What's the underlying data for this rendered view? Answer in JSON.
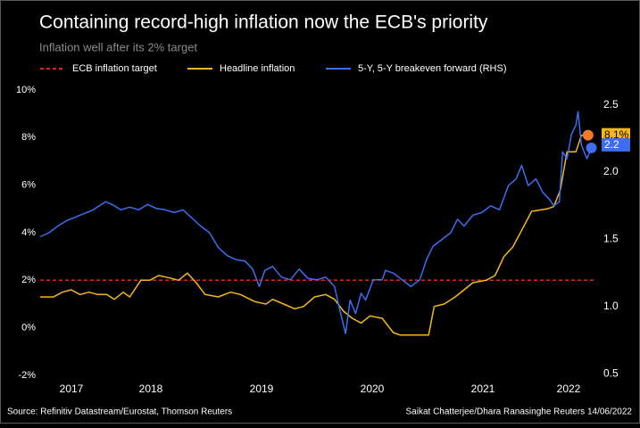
{
  "chart_data": {
    "type": "line",
    "title": "Containing record-high inflation now the ECB's priority",
    "subtitle": "Inflation well after its 2% target",
    "source": "Source: Refinitiv Datastream/Eurostat, Thomson Reuters",
    "credit": "Saikat Chatterjee/Dhara Ranasinghe Reuters 14/06/2022",
    "xlim": [
      2017,
      2022
    ],
    "xticks": [
      2017,
      2018,
      2019,
      2020,
      2021,
      2022
    ],
    "ylim": [
      -2,
      10
    ],
    "yticks": [
      {
        "value": -2,
        "label": "-2%"
      },
      {
        "value": 0,
        "label": "0%"
      },
      {
        "value": 2,
        "label": "2%"
      },
      {
        "value": 4,
        "label": "4%"
      },
      {
        "value": 6,
        "label": "6%"
      },
      {
        "value": 8,
        "label": "8%"
      },
      {
        "value": 10,
        "label": "10%"
      }
    ],
    "y2lim": [
      0.49,
      2.61
    ],
    "y2ticks": [
      {
        "value": 0.5,
        "label": "0.5"
      },
      {
        "value": 1.0,
        "label": "1.0"
      },
      {
        "value": 1.5,
        "label": "1.5"
      },
      {
        "value": 2.0,
        "label": "2.0"
      },
      {
        "value": 2.5,
        "label": "2.5"
      }
    ],
    "grid": false,
    "series": [
      {
        "name": "ECB inflation target",
        "color": "#e3221c",
        "style": "dashed",
        "x": [
          2017,
          2022
        ],
        "values": [
          2,
          2
        ]
      },
      {
        "name": "Headline inflation",
        "color": "#f5b81c",
        "marker_color": "#f07a2a",
        "x": [
          2017.0,
          2017.12,
          2017.2,
          2017.28,
          2017.36,
          2017.44,
          2017.52,
          2017.6,
          2017.67,
          2017.75,
          2017.81,
          2017.91,
          2017.99,
          2018.07,
          2018.17,
          2018.25,
          2018.33,
          2018.41,
          2018.49,
          2018.61,
          2018.72,
          2018.81,
          2018.94,
          2019.04,
          2019.1,
          2019.2,
          2019.3,
          2019.38,
          2019.48,
          2019.58,
          2019.66,
          2019.74,
          2019.82,
          2019.9,
          2019.98,
          2020.09,
          2020.19,
          2020.25,
          2020.51,
          2020.56,
          2020.65,
          2020.75,
          2020.83,
          2020.91,
          2021.03,
          2021.11,
          2021.19,
          2021.27,
          2021.35,
          2021.44,
          2021.58,
          2021.64,
          2021.7,
          2021.76,
          2021.84,
          2021.89,
          2021.95
        ],
        "values": [
          1.3,
          1.3,
          1.5,
          1.6,
          1.4,
          1.5,
          1.4,
          1.4,
          1.2,
          1.5,
          1.3,
          2.0,
          2.0,
          2.2,
          2.1,
          2.0,
          2.3,
          1.9,
          1.4,
          1.3,
          1.5,
          1.4,
          1.1,
          1.0,
          1.2,
          1.0,
          0.8,
          0.9,
          1.3,
          1.4,
          1.2,
          0.7,
          0.4,
          0.2,
          0.5,
          0.4,
          -0.2,
          -0.3,
          -0.3,
          0.9,
          1.0,
          1.3,
          1.6,
          1.9,
          2.0,
          2.2,
          3.0,
          3.4,
          4.1,
          4.9,
          5.0,
          5.1,
          5.8,
          7.4,
          7.4,
          8.1,
          8.1
        ],
        "end_label": {
          "value": 8.1,
          "label": "8.1%"
        }
      },
      {
        "name": "5-Y, 5-Y breakeven forward (RHS)",
        "color": "#3d6ef0",
        "axis": "y2",
        "x": [
          2017.0,
          2017.08,
          2017.16,
          2017.24,
          2017.36,
          2017.48,
          2017.59,
          2017.65,
          2017.73,
          2017.81,
          2017.89,
          2017.97,
          2018.05,
          2018.13,
          2018.21,
          2018.29,
          2018.37,
          2018.45,
          2018.53,
          2018.61,
          2018.69,
          2018.77,
          2018.85,
          2018.92,
          2018.98,
          2019.03,
          2019.1,
          2019.18,
          2019.26,
          2019.34,
          2019.42,
          2019.5,
          2019.58,
          2019.66,
          2019.7,
          2019.76,
          2019.8,
          2019.85,
          2019.9,
          2019.94,
          2020.01,
          2020.09,
          2020.12,
          2020.19,
          2020.27,
          2020.35,
          2020.43,
          2020.49,
          2020.55,
          2020.63,
          2020.71,
          2020.77,
          2020.83,
          2020.91,
          2020.99,
          2021.07,
          2021.15,
          2021.23,
          2021.3,
          2021.35,
          2021.41,
          2021.48,
          2021.54,
          2021.6,
          2021.64,
          2021.69,
          2021.72,
          2021.76,
          2021.8,
          2021.84,
          2021.86,
          2021.89,
          2021.94,
          2021.98
        ],
        "values": [
          1.52,
          1.55,
          1.6,
          1.64,
          1.68,
          1.72,
          1.78,
          1.76,
          1.72,
          1.74,
          1.72,
          1.76,
          1.73,
          1.72,
          1.7,
          1.72,
          1.66,
          1.6,
          1.55,
          1.44,
          1.38,
          1.35,
          1.34,
          1.28,
          1.15,
          1.27,
          1.3,
          1.22,
          1.2,
          1.28,
          1.21,
          1.2,
          1.22,
          1.15,
          1.0,
          0.8,
          1.05,
          0.95,
          1.1,
          1.05,
          1.2,
          1.2,
          1.27,
          1.25,
          1.2,
          1.15,
          1.2,
          1.35,
          1.45,
          1.5,
          1.55,
          1.65,
          1.6,
          1.68,
          1.7,
          1.75,
          1.72,
          1.9,
          1.95,
          2.05,
          1.9,
          1.95,
          1.85,
          1.8,
          1.75,
          1.78,
          2.15,
          2.1,
          2.28,
          2.35,
          2.45,
          2.2,
          2.1,
          2.18
        ],
        "end_label": {
          "value": 2.2,
          "label": "2.2"
        }
      }
    ]
  }
}
